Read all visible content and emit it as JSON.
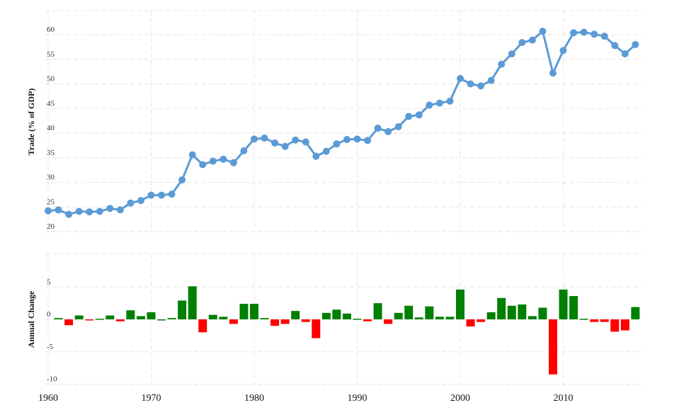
{
  "chart_data": [
    {
      "type": "line",
      "ylabel": "Trade (% of GDP)",
      "ylim": [
        20,
        65
      ],
      "yticks": [
        20,
        25,
        30,
        35,
        40,
        45,
        50,
        55,
        60
      ],
      "xlim": [
        1960,
        2018
      ],
      "xticks": [
        1960,
        1970,
        1980,
        1990,
        2000,
        2010
      ],
      "grid": true,
      "series": [
        {
          "color": "#5b9bd5",
          "x": [
            1960,
            1961,
            1962,
            1963,
            1964,
            1965,
            1966,
            1967,
            1968,
            1969,
            1970,
            1971,
            1972,
            1973,
            1974,
            1975,
            1976,
            1977,
            1978,
            1979,
            1980,
            1981,
            1982,
            1983,
            1984,
            1985,
            1986,
            1987,
            1988,
            1989,
            1990,
            1991,
            1992,
            1993,
            1994,
            1995,
            1996,
            1997,
            1998,
            1999,
            2000,
            2001,
            2002,
            2003,
            2004,
            2005,
            2006,
            2007,
            2008,
            2009,
            2010,
            2011,
            2012,
            2013,
            2014,
            2015,
            2016,
            2017
          ],
          "y": [
            24.2,
            24.4,
            23.5,
            24.1,
            24.0,
            24.1,
            24.7,
            24.4,
            25.8,
            26.3,
            27.4,
            27.4,
            27.6,
            30.5,
            35.6,
            33.6,
            34.3,
            34.7,
            34.0,
            36.4,
            38.8,
            39.0,
            38.0,
            37.3,
            38.6,
            38.2,
            35.3,
            36.3,
            37.8,
            38.7,
            38.8,
            38.5,
            41.0,
            40.3,
            41.3,
            43.4,
            43.7,
            45.7,
            46.1,
            46.5,
            51.1,
            50.0,
            49.6,
            50.7,
            54.0,
            56.1,
            58.4,
            58.9,
            60.7,
            52.2,
            56.8,
            60.4,
            60.5,
            60.1,
            59.7,
            57.8,
            56.1,
            58.0
          ]
        }
      ]
    },
    {
      "type": "bar",
      "ylabel": "Annual Change",
      "ylim": [
        -10,
        10
      ],
      "yticks": [
        -10,
        -5,
        0,
        5
      ],
      "grid": true,
      "positive_color": "#008000",
      "negative_color": "#ff0000",
      "x": [
        1961,
        1962,
        1963,
        1964,
        1965,
        1966,
        1967,
        1968,
        1969,
        1970,
        1971,
        1972,
        1973,
        1974,
        1975,
        1976,
        1977,
        1978,
        1979,
        1980,
        1981,
        1982,
        1983,
        1984,
        1985,
        1986,
        1987,
        1988,
        1989,
        1990,
        1991,
        1992,
        1993,
        1994,
        1995,
        1996,
        1997,
        1998,
        1999,
        2000,
        2001,
        2002,
        2003,
        2004,
        2005,
        2006,
        2007,
        2008,
        2009,
        2010,
        2011,
        2012,
        2013,
        2014,
        2015,
        2016,
        2017
      ],
      "values": [
        0.2,
        -0.9,
        0.6,
        -0.1,
        0.1,
        0.6,
        -0.3,
        1.4,
        0.5,
        1.1,
        0.0,
        0.2,
        2.9,
        5.1,
        -2.0,
        0.7,
        0.4,
        -0.7,
        2.4,
        2.4,
        0.2,
        -1.0,
        -0.7,
        1.3,
        -0.4,
        -2.9,
        1.0,
        1.5,
        0.9,
        0.1,
        -0.3,
        2.5,
        -0.7,
        1.0,
        2.1,
        0.3,
        2.0,
        0.4,
        0.4,
        4.6,
        -1.1,
        -0.4,
        1.1,
        3.3,
        2.1,
        2.3,
        0.5,
        1.8,
        -8.5,
        4.6,
        3.6,
        0.1,
        -0.4,
        -0.4,
        -1.9,
        -1.7,
        1.9
      ]
    }
  ]
}
